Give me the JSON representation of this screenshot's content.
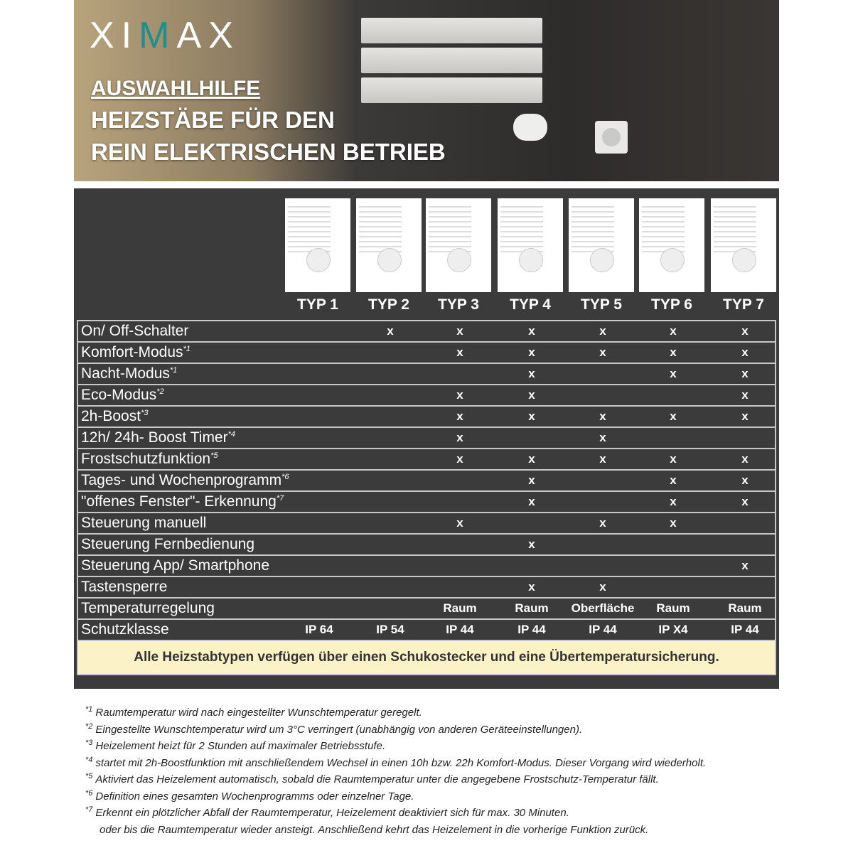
{
  "header": {
    "logo": "XIMAX",
    "title1": "AUSWAHLHILFE",
    "title2": "HEIZSTÄBE FÜR DEN",
    "title3": "REIN ELEKTRISCHEN BETRIEB"
  },
  "types": [
    "TYP 1",
    "TYP 2",
    "TYP 3",
    "TYP 4",
    "TYP 5",
    "TYP 6",
    "TYP 7"
  ],
  "rows": [
    {
      "label": "On/ Off-Schalter",
      "ref": "",
      "cells": [
        "",
        "x",
        "x",
        "x",
        "x",
        "x",
        "x"
      ]
    },
    {
      "label": "Komfort-Modus",
      "ref": "*1",
      "cells": [
        "",
        "",
        "x",
        "x",
        "x",
        "x",
        "x"
      ]
    },
    {
      "label": "Nacht-Modus",
      "ref": "*1",
      "cells": [
        "",
        "",
        "",
        "x",
        "",
        "x",
        "x"
      ]
    },
    {
      "label": "Eco-Modus",
      "ref": "*2",
      "cells": [
        "",
        "",
        "x",
        "x",
        "",
        "",
        "x"
      ]
    },
    {
      "label": "2h-Boost",
      "ref": "*3",
      "cells": [
        "",
        "",
        "x",
        "x",
        "x",
        "x",
        "x"
      ]
    },
    {
      "label": "12h/ 24h- Boost Timer",
      "ref": "*4",
      "cells": [
        "",
        "",
        "x",
        "",
        "x",
        "",
        ""
      ]
    },
    {
      "label": "Frostschutzfunktion",
      "ref": "*5",
      "cells": [
        "",
        "",
        "x",
        "x",
        "x",
        "x",
        "x"
      ]
    },
    {
      "label": "Tages- und Wochenprogramm",
      "ref": "*6",
      "cells": [
        "",
        "",
        "",
        "x",
        "",
        "x",
        "x"
      ]
    },
    {
      "label": "\"offenes Fenster\"- Erkennung",
      "ref": "*7",
      "cells": [
        "",
        "",
        "",
        "x",
        "",
        "x",
        "x"
      ]
    },
    {
      "label": "Steuerung manuell",
      "ref": "",
      "cells": [
        "",
        "",
        "x",
        "",
        "x",
        "x",
        ""
      ]
    },
    {
      "label": "Steuerung Fernbedienung",
      "ref": "",
      "cells": [
        "",
        "",
        "",
        "x",
        "",
        "",
        ""
      ]
    },
    {
      "label": "Steuerung App/ Smartphone",
      "ref": "",
      "cells": [
        "",
        "",
        "",
        "",
        "",
        "",
        "x"
      ]
    },
    {
      "label": "Tastensperre",
      "ref": "",
      "cells": [
        "",
        "",
        "",
        "x",
        "x",
        "",
        ""
      ]
    },
    {
      "label": "Temperaturregelung",
      "ref": "",
      "cells": [
        "",
        "",
        "Raum",
        "Raum",
        "Oberfläche",
        "Raum",
        "Raum"
      ]
    },
    {
      "label": "Schutzklasse",
      "ref": "",
      "cells": [
        "IP 64",
        "IP 54",
        "IP 44",
        "IP 44",
        "IP 44",
        "IP X4",
        "IP 44"
      ]
    }
  ],
  "note": "Alle Heizstabtypen verfügen über einen Schukostecker und eine Übertemperatursicherung.",
  "footnotes": [
    {
      "ref": "*1",
      "text": "Raumtemperatur wird nach eingestellter Wunschtemperatur geregelt."
    },
    {
      "ref": "*2",
      "text": "Eingestellte Wunschtemperatur wird um 3°C verringert (unabhängig von anderen Geräteeinstellungen)."
    },
    {
      "ref": "*3",
      "text": "Heizelement heizt für 2 Stunden auf maximaler Betriebsstufe."
    },
    {
      "ref": "*4",
      "text": "startet mit 2h-Boostfunktion mit anschließendem Wechsel in einen 10h bzw. 22h Komfort-Modus. Dieser Vorgang wird wiederholt."
    },
    {
      "ref": "*5",
      "text": "Aktiviert das Heizelement automatisch, sobald die Raumtemperatur unter die angegebene Frostschutz-Temperatur fällt."
    },
    {
      "ref": "*6",
      "text": "Definition eines gesamten Wochenprogramms oder einzelner Tage."
    },
    {
      "ref": "*7",
      "text": "Erkennt ein plötzlicher Abfall der Raumtemperatur, Heizelement deaktiviert sich für max. 30 Minuten."
    },
    {
      "ref": "",
      "text": "oder bis die Raumtemperatur wieder ansteigt. Anschließend kehrt das Heizelement in die vorherige Funktion zurück."
    }
  ]
}
